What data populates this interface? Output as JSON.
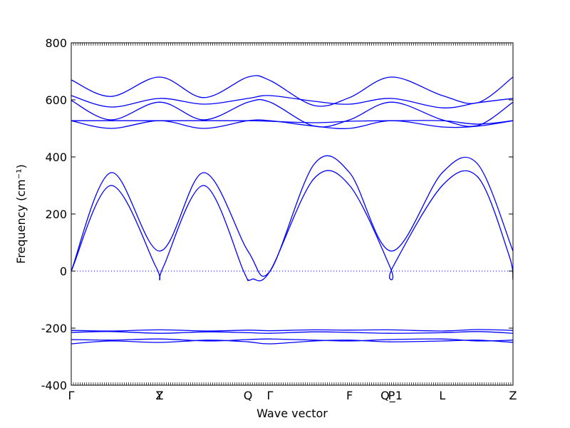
{
  "chart_data": {
    "type": "line",
    "xlabel": "Wave vector",
    "ylabel": "Frequency (cm⁻¹)",
    "ylim": [
      -400,
      800
    ],
    "y_ticks": [
      -400,
      -200,
      0,
      200,
      400,
      600,
      800
    ],
    "x_points": [
      {
        "label": "Γ",
        "x": 0
      },
      {
        "label": "Y",
        "x": 2
      },
      {
        "label": "Z",
        "x": 2
      },
      {
        "label": "Q",
        "x": 4
      },
      {
        "label": "Γ",
        "x": 4.5
      },
      {
        "label": "F",
        "x": 6.3
      },
      {
        "label": "P",
        "x": 7.25
      },
      {
        "label": "Q_1",
        "x": 7.25
      },
      {
        "label": "L",
        "x": 8.4
      },
      {
        "label": "Z",
        "x": 10
      }
    ],
    "xlim": [
      0,
      10
    ],
    "zero_line": true,
    "color": "#0000ff",
    "series": [
      {
        "x": [
          0,
          0.9,
          2.0,
          3.1,
          4.0,
          4.5,
          5.5,
          6.3,
          7.2,
          8.4,
          9.2,
          10
        ],
        "values": [
          -255,
          -245,
          -250,
          -242,
          -248,
          -255,
          -245,
          -242,
          -248,
          -245,
          -242,
          -250
        ]
      },
      {
        "x": [
          0,
          0.9,
          2.0,
          3.1,
          4.0,
          4.5,
          5.5,
          6.3,
          7.2,
          8.4,
          9.2,
          10
        ],
        "values": [
          -240,
          -242,
          -238,
          -245,
          -240,
          -238,
          -242,
          -245,
          -240,
          -238,
          -245,
          -242
        ]
      },
      {
        "x": [
          0,
          0.9,
          2.0,
          3.1,
          4.0,
          4.5,
          5.5,
          6.3,
          7.2,
          8.4,
          9.2,
          10
        ],
        "values": [
          -215,
          -212,
          -218,
          -213,
          -216,
          -218,
          -213,
          -215,
          -218,
          -216,
          -212,
          -218
        ]
      },
      {
        "x": [
          0,
          0.9,
          2.0,
          3.1,
          4.0,
          4.5,
          5.5,
          6.3,
          7.2,
          8.4,
          9.2,
          10
        ],
        "values": [
          -208,
          -210,
          -206,
          -210,
          -207,
          -209,
          -206,
          -207,
          -206,
          -210,
          -205,
          -208
        ]
      },
      {
        "x": [
          0,
          0.9,
          1.9,
          2.0,
          2.1,
          3.0,
          3.9,
          4.0,
          4.1,
          4.5,
          5.5,
          6.3,
          7.2,
          7.25,
          7.3,
          8.4,
          9.2,
          9.9,
          10
        ],
        "values": [
          0,
          300,
          20,
          -30,
          20,
          300,
          0,
          -30,
          -28,
          0,
          325,
          300,
          20,
          -30,
          20,
          300,
          330,
          60,
          -30
        ]
      },
      {
        "x": [
          0,
          0.9,
          2.0,
          3.0,
          4.0,
          4.5,
          5.5,
          6.3,
          7.25,
          8.4,
          9.2,
          10
        ],
        "values": [
          0,
          345,
          70,
          345,
          70,
          0,
          375,
          345,
          70,
          345,
          375,
          70
        ]
      },
      {
        "x": [
          0,
          0.9,
          2.0,
          3.0,
          4.0,
          4.5,
          5.5,
          6.3,
          7.25,
          8.4,
          9.2,
          10
        ],
        "values": [
          527,
          500,
          527,
          500,
          527,
          527,
          508,
          500,
          527,
          505,
          508,
          527
        ]
      },
      {
        "x": [
          0,
          0.9,
          2.0,
          3.0,
          4.0,
          4.5,
          5.5,
          6.3,
          7.25,
          8.4,
          9.2,
          10
        ],
        "values": [
          527,
          527,
          527,
          527,
          527,
          525,
          520,
          525,
          527,
          527,
          515,
          527
        ]
      },
      {
        "x": [
          0,
          0.9,
          2.0,
          3.0,
          4.0,
          4.5,
          5.5,
          6.3,
          7.25,
          8.4,
          9.2,
          10
        ],
        "values": [
          598,
          530,
          592,
          530,
          592,
          592,
          508,
          530,
          592,
          530,
          510,
          592
        ]
      },
      {
        "x": [
          0,
          0.9,
          2.0,
          3.0,
          4.0,
          4.5,
          5.5,
          6.3,
          7.25,
          8.4,
          9.2,
          10
        ],
        "values": [
          615,
          575,
          605,
          585,
          605,
          615,
          595,
          585,
          605,
          572,
          590,
          605
        ]
      },
      {
        "x": [
          0,
          0.9,
          2.0,
          3.0,
          4.0,
          4.5,
          5.5,
          6.3,
          7.25,
          8.4,
          9.2,
          10
        ],
        "values": [
          670,
          612,
          680,
          608,
          680,
          668,
          580,
          608,
          680,
          615,
          590,
          680
        ]
      }
    ]
  }
}
